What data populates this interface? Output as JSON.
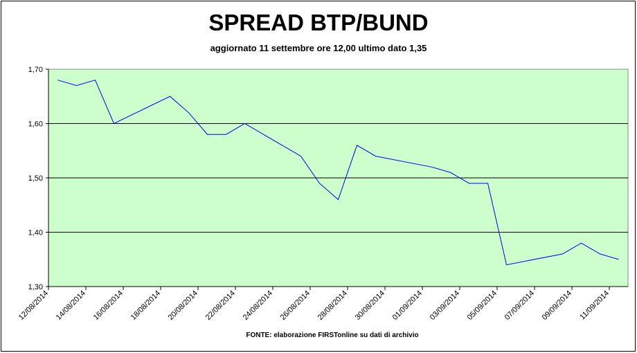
{
  "chart_data": {
    "type": "line",
    "title": "SPREAD BTP/BUND",
    "subtitle": "aggiornato 11 settembre ore 12,00 ultimo dato 1,35",
    "source": "FONTE: elaborazione FIRSTonline su dati di archivio",
    "x": [
      "12/08/2014",
      "13/08/2014",
      "14/08/2014",
      "15/08/2014",
      "18/08/2014",
      "19/08/2014",
      "20/08/2014",
      "21/08/2014",
      "22/08/2014",
      "25/08/2014",
      "26/08/2014",
      "27/08/2014",
      "28/08/2014",
      "29/08/2014",
      "01/09/2014",
      "02/09/2014",
      "03/09/2014",
      "04/09/2014",
      "05/09/2014",
      "08/09/2014",
      "09/09/2014",
      "10/09/2014",
      "11/09/2014"
    ],
    "series": [
      {
        "name": "Spread BTP/BUND",
        "color": "#0000ff",
        "values": [
          1.68,
          1.67,
          1.68,
          1.6,
          1.65,
          1.62,
          1.58,
          1.58,
          1.6,
          1.54,
          1.49,
          1.46,
          1.56,
          1.54,
          1.52,
          1.51,
          1.49,
          1.49,
          1.34,
          1.36,
          1.38,
          1.36,
          1.35
        ]
      }
    ],
    "xlim": [
      "12/08/2014",
      "11/09/2014"
    ],
    "xticks": [
      "12/08/2014",
      "14/08/2014",
      "16/08/2014",
      "18/08/2014",
      "20/08/2014",
      "22/08/2014",
      "24/08/2014",
      "26/08/2014",
      "28/08/2014",
      "30/08/2014",
      "01/09/2014",
      "03/09/2014",
      "05/09/2014",
      "07/09/2014",
      "09/09/2014",
      "11/09/2014"
    ],
    "ylim": [
      1.3,
      1.7
    ],
    "yticks": [
      {
        "value": 1.3,
        "label": "1,30"
      },
      {
        "value": 1.4,
        "label": "1,40"
      },
      {
        "value": 1.5,
        "label": "1,50"
      },
      {
        "value": 1.6,
        "label": "1,60"
      },
      {
        "value": 1.7,
        "label": "1,70"
      }
    ],
    "grid": true,
    "plot_color": "#ccffcc"
  }
}
